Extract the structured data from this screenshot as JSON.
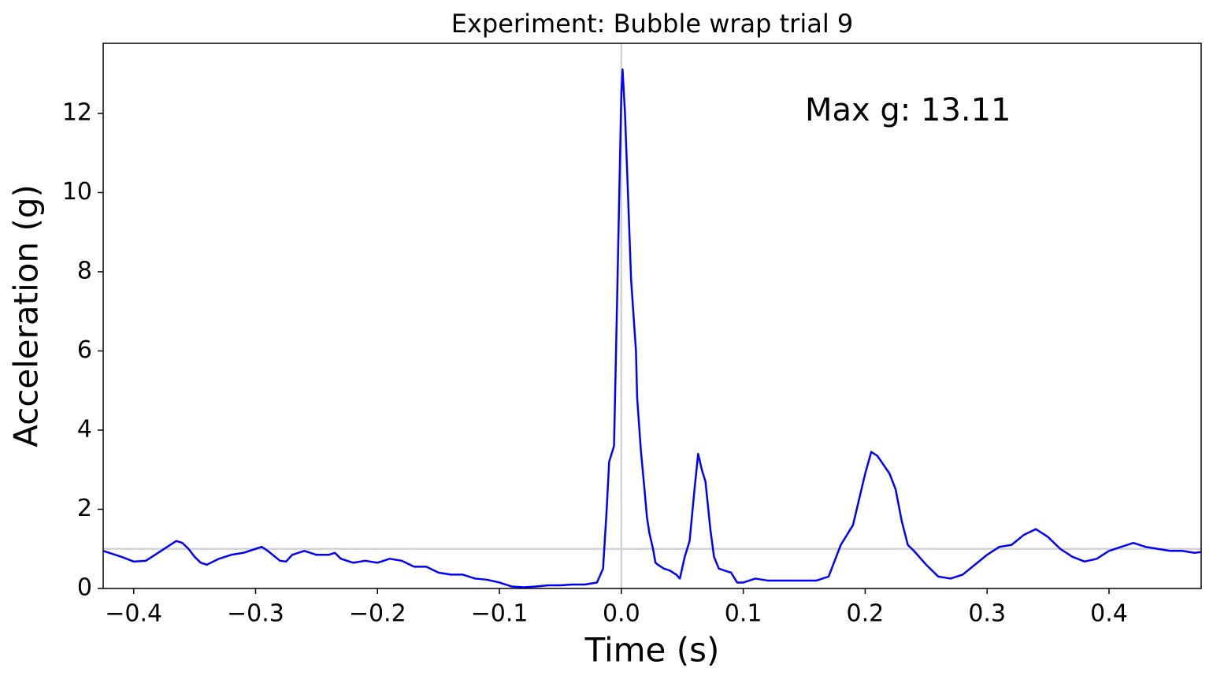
{
  "chart_data": {
    "type": "line",
    "title": "Experiment: Bubble wrap trial 9",
    "x_label": "Time (s)",
    "y_label": "Acceleration (g)",
    "annotation": "Max g: 13.11",
    "annotation_color": "#008000",
    "xlim": [
      -0.425,
      0.4756
    ],
    "ylim": [
      0,
      13.77
    ],
    "xticks": [
      {
        "value": -0.4,
        "label": "−0.4"
      },
      {
        "value": -0.3,
        "label": "−0.3"
      },
      {
        "value": -0.2,
        "label": "−0.2"
      },
      {
        "value": -0.1,
        "label": "−0.1"
      },
      {
        "value": 0,
        "label": "0.0"
      },
      0.1,
      0.2,
      0.3,
      0.4
    ],
    "yticks": [
      0,
      2,
      4,
      6,
      8,
      10,
      12
    ],
    "reference_color": "#d3d3d3",
    "vlines": [
      0
    ],
    "hlines": [
      1
    ],
    "x": [
      -0.425,
      -0.41,
      -0.4,
      -0.39,
      -0.38,
      -0.37,
      -0.365,
      -0.36,
      -0.355,
      -0.35,
      -0.345,
      -0.34,
      -0.33,
      -0.32,
      -0.31,
      -0.3,
      -0.295,
      -0.29,
      -0.28,
      -0.275,
      -0.27,
      -0.26,
      -0.25,
      -0.24,
      -0.235,
      -0.23,
      -0.22,
      -0.21,
      -0.2,
      -0.19,
      -0.18,
      -0.17,
      -0.16,
      -0.15,
      -0.14,
      -0.13,
      -0.12,
      -0.11,
      -0.1,
      -0.09,
      -0.08,
      -0.07,
      -0.06,
      -0.05,
      -0.04,
      -0.03,
      -0.02,
      -0.015,
      -0.012,
      -0.01,
      -0.006,
      -0.004,
      -0.002,
      0,
      0.001,
      0.003,
      0.006,
      0.008,
      0.012,
      0.013,
      0.016,
      0.019,
      0.021,
      0.023,
      0.026,
      0.028,
      0.03,
      0.035,
      0.04,
      0.045,
      0.048,
      0.052,
      0.056,
      0.06,
      0.063,
      0.066,
      0.069,
      0.073,
      0.076,
      0.08,
      0.085,
      0.09,
      0.095,
      0.1,
      0.11,
      0.12,
      0.13,
      0.14,
      0.15,
      0.16,
      0.17,
      0.18,
      0.19,
      0.2,
      0.205,
      0.21,
      0.22,
      0.225,
      0.23,
      0.235,
      0.24,
      0.25,
      0.26,
      0.27,
      0.28,
      0.29,
      0.3,
      0.31,
      0.32,
      0.33,
      0.34,
      0.35,
      0.36,
      0.37,
      0.38,
      0.39,
      0.4,
      0.41,
      0.42,
      0.43,
      0.44,
      0.45,
      0.46,
      0.47,
      0.4756
    ],
    "series": [
      {
        "name": "Acceleration",
        "color": "#0000ff",
        "values": [
          0.95,
          0.8,
          0.68,
          0.7,
          0.9,
          1.1,
          1.2,
          1.15,
          1.0,
          0.8,
          0.65,
          0.6,
          0.75,
          0.85,
          0.9,
          1.0,
          1.05,
          0.95,
          0.7,
          0.68,
          0.85,
          0.95,
          0.85,
          0.85,
          0.9,
          0.75,
          0.65,
          0.7,
          0.65,
          0.75,
          0.7,
          0.55,
          0.55,
          0.4,
          0.35,
          0.35,
          0.25,
          0.22,
          0.15,
          0.05,
          0.03,
          0.05,
          0.08,
          0.08,
          0.1,
          0.1,
          0.15,
          0.5,
          2.0,
          3.2,
          3.6,
          6.5,
          9.5,
          12.5,
          13.11,
          12.0,
          9.5,
          7.8,
          6.0,
          4.8,
          3.5,
          2.5,
          1.8,
          1.4,
          1.0,
          0.65,
          0.6,
          0.5,
          0.45,
          0.35,
          0.25,
          0.8,
          1.2,
          2.5,
          3.4,
          3.0,
          2.7,
          1.5,
          0.8,
          0.5,
          0.45,
          0.4,
          0.15,
          0.15,
          0.25,
          0.2,
          0.2,
          0.2,
          0.2,
          0.2,
          0.3,
          1.1,
          1.6,
          2.9,
          3.45,
          3.35,
          2.9,
          2.5,
          1.7,
          1.1,
          0.95,
          0.6,
          0.3,
          0.25,
          0.35,
          0.6,
          0.85,
          1.05,
          1.1,
          1.35,
          1.5,
          1.3,
          1.0,
          0.8,
          0.68,
          0.75,
          0.95,
          1.05,
          1.15,
          1.05,
          1.0,
          0.95,
          0.95,
          0.9,
          0.92
        ]
      }
    ]
  }
}
